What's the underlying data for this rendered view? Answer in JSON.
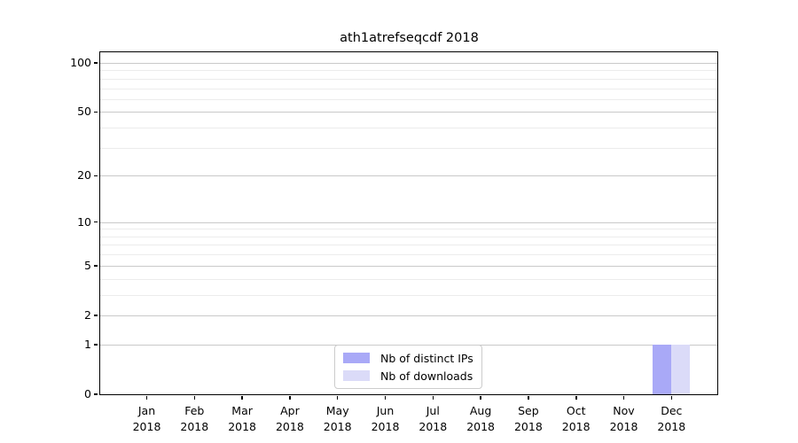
{
  "chart_data": {
    "type": "bar",
    "title": "ath1atrefseqcdf 2018",
    "categories": [
      "Jan",
      "Feb",
      "Mar",
      "Apr",
      "May",
      "Jun",
      "Jul",
      "Aug",
      "Sep",
      "Oct",
      "Nov",
      "Dec"
    ],
    "year_label": "2018",
    "series": [
      {
        "name": "Nb of distinct IPs",
        "color": "#a9a9f7",
        "values": [
          0,
          0,
          0,
          0,
          0,
          0,
          0,
          0,
          0,
          0,
          0,
          1
        ]
      },
      {
        "name": "Nb of downloads",
        "color": "#dbdbf8",
        "values": [
          0,
          0,
          0,
          0,
          0,
          0,
          0,
          0,
          0,
          0,
          0,
          1
        ]
      }
    ],
    "y_axis": {
      "scale": "log1p",
      "ticks": [
        0,
        1,
        2,
        5,
        10,
        20,
        50,
        100
      ],
      "minor_gridlines": [
        3,
        4,
        6,
        7,
        8,
        9,
        30,
        40,
        60,
        70,
        80,
        90
      ],
      "ylim": [
        0,
        116
      ]
    },
    "xlabel": "",
    "ylabel": "",
    "grid": true,
    "legend_position": "inside-bottom-center",
    "colors": {
      "frame": "#000000",
      "major_grid": "#c9c9c9",
      "minor_grid": "#ececec",
      "background": "#ffffff"
    }
  }
}
